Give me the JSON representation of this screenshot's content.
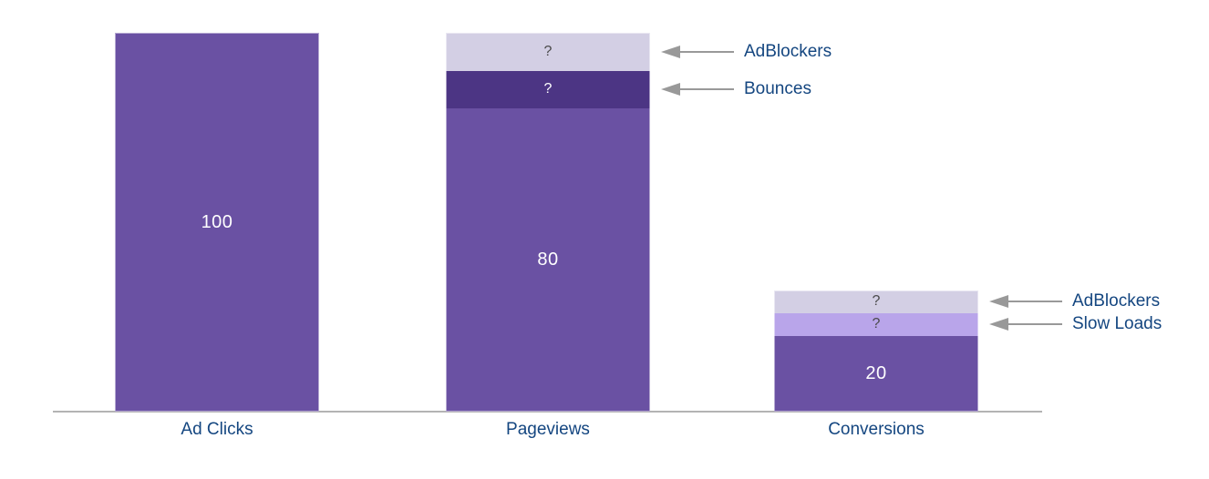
{
  "chart_data": {
    "type": "bar",
    "stacked": true,
    "orientation": "vertical",
    "gridlines": false,
    "legend": "none",
    "categories": [
      "Ad Clicks",
      "Pageviews",
      "Conversions"
    ],
    "bars": [
      {
        "category": "Ad Clicks",
        "segments": [
          {
            "name": "Ad Clicks",
            "display": "100",
            "render_value": 100,
            "fill": "main",
            "text": "light"
          }
        ]
      },
      {
        "category": "Pageviews",
        "segments": [
          {
            "name": "AdBlockers",
            "display": "?",
            "render_value": 10,
            "fill": "adblockers",
            "text": "dark"
          },
          {
            "name": "Bounces",
            "display": "?",
            "render_value": 10,
            "fill": "bounces",
            "text": "light"
          },
          {
            "name": "Pageviews",
            "display": "80",
            "render_value": 80,
            "fill": "main",
            "text": "light"
          }
        ]
      },
      {
        "category": "Conversions",
        "segments": [
          {
            "name": "AdBlockers",
            "display": "?",
            "render_value": 6,
            "fill": "adblockers",
            "text": "dark"
          },
          {
            "name": "Slow Loads",
            "display": "?",
            "render_value": 6,
            "fill": "slow_loads",
            "text": "dark"
          },
          {
            "name": "Conversions",
            "display": "20",
            "render_value": 20,
            "fill": "main",
            "text": "light"
          }
        ]
      }
    ],
    "annotations": [
      {
        "bar": 1,
        "segment": 0,
        "label": "AdBlockers"
      },
      {
        "bar": 1,
        "segment": 1,
        "label": "Bounces"
      },
      {
        "bar": 2,
        "segment": 0,
        "label": "AdBlockers"
      },
      {
        "bar": 2,
        "segment": 1,
        "label": "Slow Loads"
      }
    ]
  },
  "colors": {
    "main": "#6A51A3",
    "bounces": "#4C3584",
    "adblockers": "#D3CFE4",
    "slow_loads": "#B9A5EA",
    "label_light": "#FFFFFF",
    "label_dark": "#4A4A4A",
    "category_label": "#144680",
    "annotation_label": "#144680",
    "arrow": "#999999",
    "axis_line": "#B3B3B3",
    "background": "#FFFFFF"
  }
}
